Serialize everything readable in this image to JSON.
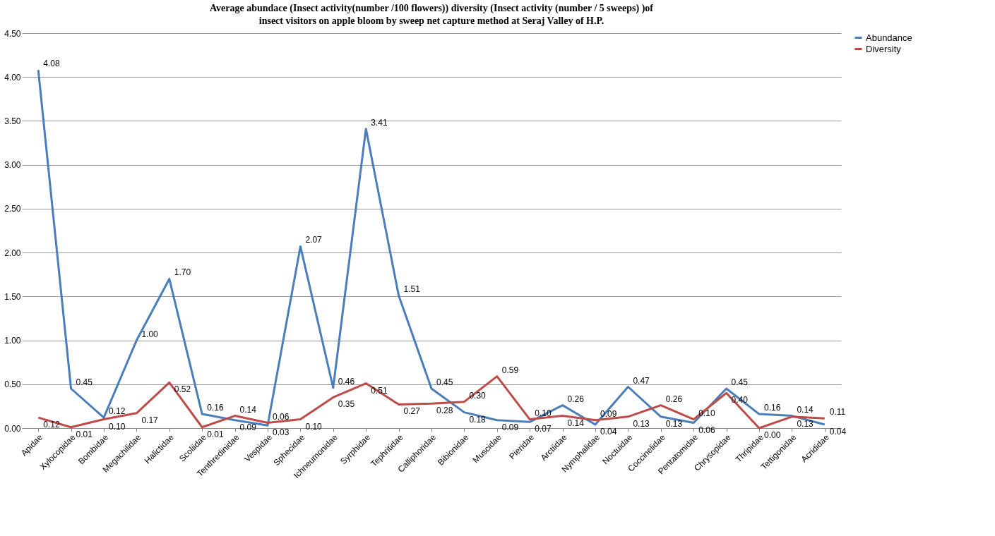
{
  "chart_data": {
    "type": "line",
    "title": "Average abundace (Insect activity(number /100 flowers)) diversity  (Insect activity  (number / 5 sweeps) )of insect visitors  on apple bloom by sweep net capture method at Seraj Valley  of H.P.",
    "categories": [
      "Apidae",
      "Xylocopidae",
      "Bombidae",
      "Megachilidae",
      "Halictidae",
      "Scoliidae",
      "Tenthredinidae",
      "Vespidae",
      "Sphecidae",
      "Ichneumonidae",
      "Syrphidae",
      "Tephritidae",
      "Calliphoridae",
      "Bibionidae",
      "Muscidae",
      "Pieridae",
      "Arctiidae",
      "Nymphalidae",
      "Noctuidae",
      "Coccinelidae",
      "Pentatomidae",
      "Chrysopidae",
      "Thripidae",
      "Tettigonidae",
      "Acrididae"
    ],
    "series": [
      {
        "name": "Abundance",
        "color": "#4a7ebb",
        "values": [
          4.08,
          0.45,
          0.12,
          1.0,
          1.7,
          0.16,
          0.09,
          0.03,
          2.07,
          0.46,
          3.41,
          1.51,
          0.45,
          0.18,
          0.09,
          0.07,
          0.26,
          0.04,
          0.47,
          0.13,
          0.06,
          0.45,
          0.16,
          0.14,
          0.04
        ],
        "value_labels": [
          "4.08",
          "0.45",
          "0.12",
          "1.00",
          "1.70",
          "0.16",
          "0.09",
          "0.03",
          "2.07",
          "0.46",
          "3.41",
          "1.51",
          "0.45",
          "0.18",
          "0.09",
          "0.07",
          "0.26",
          "0.04",
          "0.47",
          "0.13",
          "0.06",
          "0.45",
          "0.16",
          "0.14",
          "0.04"
        ]
      },
      {
        "name": "Diversity",
        "color": "#be4b48",
        "values": [
          0.12,
          0.01,
          0.1,
          0.17,
          0.52,
          0.01,
          0.14,
          0.06,
          0.1,
          0.35,
          0.51,
          0.27,
          0.28,
          0.3,
          0.59,
          0.1,
          0.14,
          0.09,
          0.13,
          0.26,
          0.1,
          0.4,
          0.0,
          0.13,
          0.11
        ],
        "value_labels": [
          "0.12",
          "0.01",
          "0.10",
          "0.17",
          "0.52",
          "0.01",
          "0.14",
          "0.06",
          "0.10",
          "0.35",
          "0.51",
          "0.27",
          "0.28",
          "0.30",
          "0.59",
          "0.10",
          "0.14",
          "0.09",
          "0.13",
          "0.26",
          "0.10",
          "0.40",
          "0.00",
          "0.13",
          "0.11"
        ]
      }
    ],
    "ylim": [
      0,
      4.5
    ],
    "yticks": [
      {
        "value": 0,
        "label": "0.00"
      },
      {
        "value": 0.5,
        "label": "0.50"
      },
      {
        "value": 1,
        "label": "1.00"
      },
      {
        "value": 1.5,
        "label": "1.50"
      },
      {
        "value": 2,
        "label": "2.00"
      },
      {
        "value": 2.5,
        "label": "2.50"
      },
      {
        "value": 3,
        "label": "3.00"
      },
      {
        "value": 3.5,
        "label": "3.50"
      },
      {
        "value": 4,
        "label": "4.00"
      },
      {
        "value": 4.5,
        "label": "4.50"
      }
    ],
    "grid": "y",
    "legend": "right",
    "marker": "none",
    "line_style": "solid"
  }
}
